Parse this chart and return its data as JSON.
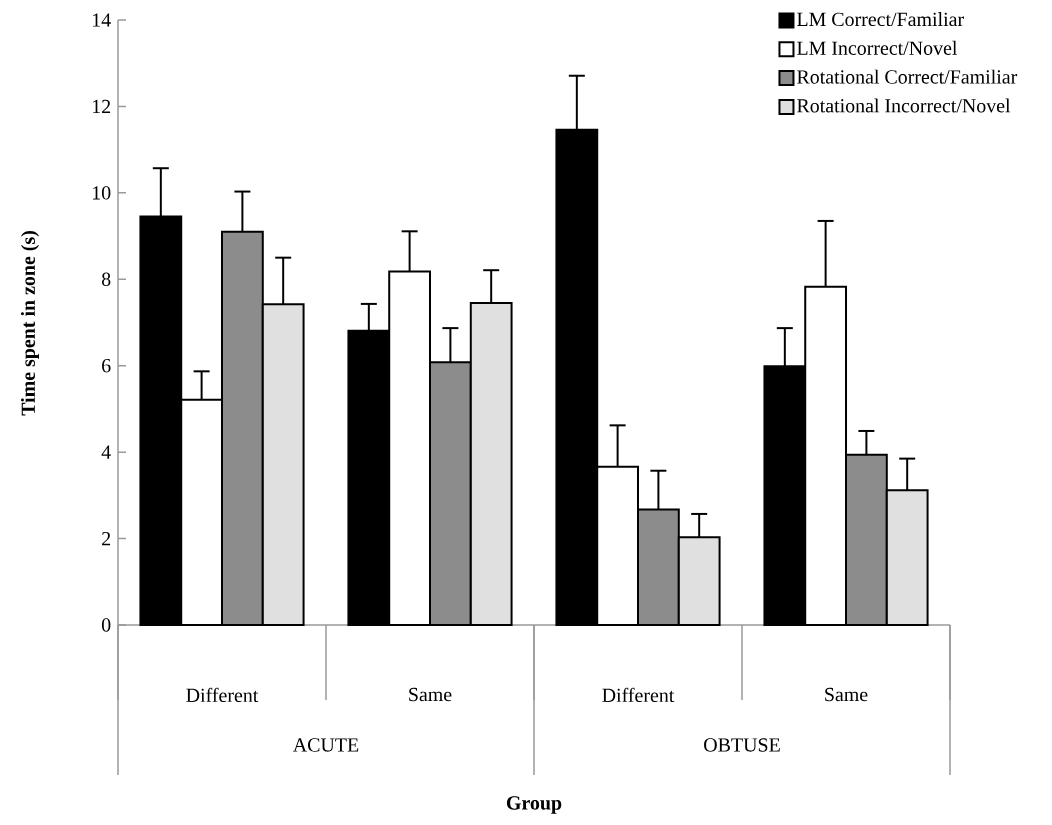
{
  "chart_data": {
    "type": "bar",
    "xlabel": "Group",
    "ylabel": "Time spent in zone (s)",
    "categories": [
      "Different",
      "Same",
      "Different",
      "Same"
    ],
    "annotations": [
      "ACUTE",
      "OBTUSE"
    ],
    "ylim": [
      0,
      14
    ],
    "yticks": [
      0,
      2,
      4,
      6,
      8,
      10,
      12,
      14
    ],
    "legend": "top right",
    "series": [
      {
        "name": "LM Correct/Familiar",
        "color": "#000000",
        "values": [
          9.45,
          6.81,
          11.46,
          5.99
        ],
        "errors": [
          1.12,
          0.62,
          1.25,
          0.88
        ]
      },
      {
        "name": "LM Incorrect/Novel",
        "color": "#ffffff",
        "values": [
          5.21,
          8.18,
          3.66,
          7.83
        ],
        "errors": [
          0.66,
          0.93,
          0.96,
          1.52
        ]
      },
      {
        "name": "Rotational Correct/Familiar",
        "color": "#8c8c8c",
        "values": [
          9.1,
          6.08,
          2.67,
          3.94
        ],
        "errors": [
          0.93,
          0.79,
          0.9,
          0.55
        ]
      },
      {
        "name": "Rotational Incorrect/Novel",
        "color": "#e0e0e0",
        "values": [
          7.42,
          7.45,
          2.03,
          3.12
        ],
        "errors": [
          1.08,
          0.76,
          0.54,
          0.73
        ]
      }
    ]
  }
}
